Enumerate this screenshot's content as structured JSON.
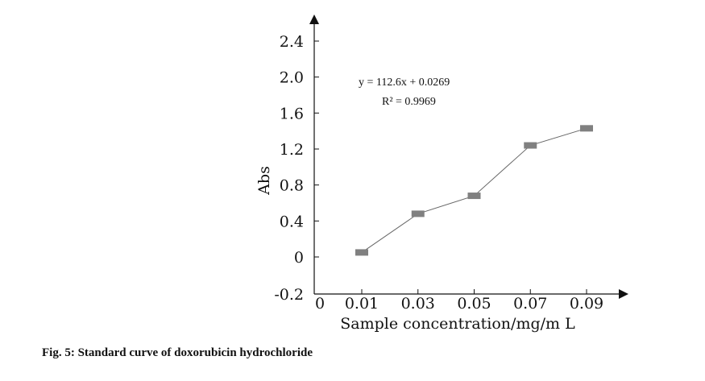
{
  "chart_data": {
    "type": "line",
    "title": "",
    "xlabel": "Sample concentration/mg/m L",
    "ylabel": "Abs",
    "x_ticks": [
      "0",
      "0.01",
      "0.03",
      "0.05",
      "0.07",
      "0.09"
    ],
    "y_ticks": [
      "-0.2",
      "0",
      "0.4",
      "0.8",
      "1.2",
      "1.6",
      "2.0",
      "2.4"
    ],
    "ylim": [
      -0.2,
      2.4
    ],
    "grid": false,
    "series": [
      {
        "x": [
          0.01,
          0.03,
          0.05,
          0.07,
          0.09
        ],
        "y": [
          0.05,
          0.48,
          0.68,
          1.24,
          1.43
        ],
        "color": "#808080"
      }
    ],
    "annotations": {
      "equation": "y = 112.6x + 0.0269",
      "r_squared": "R² = 0.9969"
    }
  },
  "caption": "Fig. 5: Standard curve of doxorubicin hydrochloride"
}
